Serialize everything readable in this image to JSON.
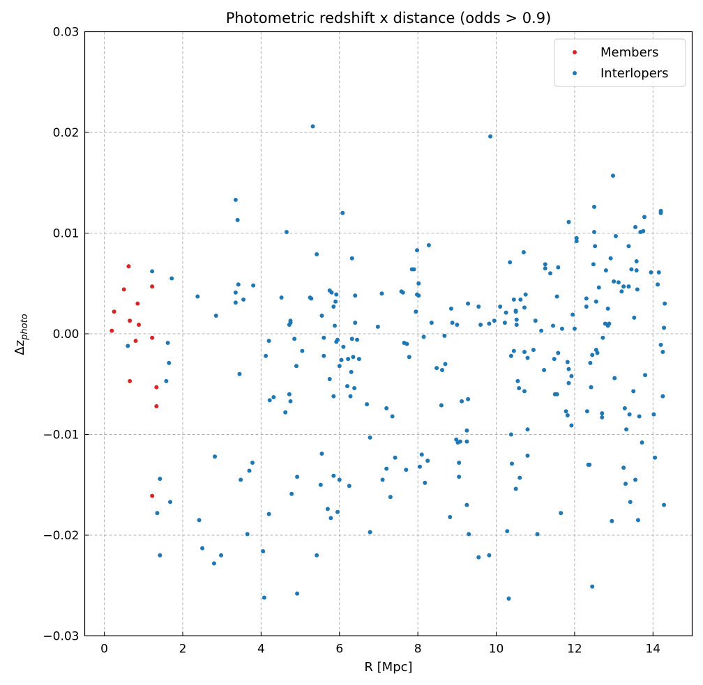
{
  "chart_data": {
    "type": "scatter",
    "title": "Photometric redshift x distance (odds > 0.9)",
    "xlabel": "R [Mpc]",
    "ylabel": "Δz",
    "ylabel_subscript": "photo",
    "xlim": [
      -0.5,
      15.0
    ],
    "ylim": [
      -0.03,
      0.03
    ],
    "xticks": [
      0,
      2,
      4,
      6,
      8,
      10,
      12,
      14
    ],
    "yticks": [
      -0.03,
      -0.02,
      -0.01,
      0.0,
      0.01,
      0.02,
      0.03
    ],
    "xtick_labels": [
      "0",
      "2",
      "4",
      "6",
      "8",
      "10",
      "12",
      "14"
    ],
    "ytick_labels": [
      "−0.03",
      "−0.02",
      "−0.01",
      "0.00",
      "0.01",
      "0.02",
      "0.03"
    ],
    "grid": true,
    "legend_position": "top-right",
    "series": [
      {
        "name": "Members",
        "color": "#d62728",
        "points": [
          [
            0.19,
            0.0003
          ],
          [
            0.25,
            0.0022
          ],
          [
            0.5,
            0.0044
          ],
          [
            0.62,
            0.0067
          ],
          [
            0.65,
            0.0013
          ],
          [
            0.65,
            -0.0047
          ],
          [
            0.8,
            -0.0007
          ],
          [
            0.85,
            0.003
          ],
          [
            0.88,
            0.0009
          ],
          [
            1.22,
            0.0047
          ],
          [
            1.22,
            -0.0004
          ],
          [
            1.22,
            -0.0161
          ],
          [
            1.33,
            -0.0053
          ],
          [
            1.33,
            -0.0072
          ]
        ]
      },
      {
        "name": "Interlopers",
        "color": "#1f77b4",
        "points": [
          [
            0.6,
            -0.0012
          ],
          [
            1.22,
            0.0062
          ],
          [
            1.35,
            -0.0178
          ],
          [
            1.42,
            -0.0144
          ],
          [
            1.42,
            -0.022
          ],
          [
            1.58,
            -0.0047
          ],
          [
            1.62,
            -0.0009
          ],
          [
            1.65,
            -0.0029
          ],
          [
            1.68,
            -0.0167
          ],
          [
            1.72,
            0.0055
          ],
          [
            2.38,
            0.0037
          ],
          [
            2.42,
            -0.0185
          ],
          [
            2.5,
            -0.0213
          ],
          [
            2.8,
            -0.0228
          ],
          [
            2.82,
            -0.0122
          ],
          [
            2.85,
            0.0018
          ],
          [
            2.98,
            -0.022
          ],
          [
            3.35,
            0.0133
          ],
          [
            3.35,
            0.0041
          ],
          [
            3.35,
            0.0031
          ],
          [
            3.4,
            0.0113
          ],
          [
            3.42,
            0.0049
          ],
          [
            3.45,
            -0.004
          ],
          [
            3.48,
            -0.0145
          ],
          [
            3.55,
            0.0034
          ],
          [
            3.65,
            -0.0199
          ],
          [
            3.7,
            -0.0136
          ],
          [
            3.78,
            -0.0128
          ],
          [
            3.8,
            0.0048
          ],
          [
            4.05,
            -0.0216
          ],
          [
            4.08,
            -0.0262
          ],
          [
            4.12,
            -0.0022
          ],
          [
            4.2,
            -0.0007
          ],
          [
            4.2,
            -0.0179
          ],
          [
            4.22,
            -0.0066
          ],
          [
            4.32,
            -0.0063
          ],
          [
            4.52,
            0.0036
          ],
          [
            4.62,
            -0.0078
          ],
          [
            4.65,
            0.0101
          ],
          [
            4.72,
            0.0009
          ],
          [
            4.75,
            0.0011
          ],
          [
            4.75,
            0.0013
          ],
          [
            4.72,
            -0.006
          ],
          [
            4.75,
            -0.0067
          ],
          [
            4.78,
            -0.0159
          ],
          [
            4.85,
            -0.0005
          ],
          [
            4.9,
            -0.0032
          ],
          [
            4.92,
            -0.0142
          ],
          [
            4.92,
            -0.0258
          ],
          [
            5.05,
            -0.0017
          ],
          [
            5.25,
            0.0036
          ],
          [
            5.28,
            0.0035
          ],
          [
            5.32,
            0.0206
          ],
          [
            5.42,
            0.0079
          ],
          [
            5.42,
            -0.022
          ],
          [
            5.55,
            0.0018
          ],
          [
            5.55,
            -0.0119
          ],
          [
            5.52,
            -0.015
          ],
          [
            5.6,
            -0.0004
          ],
          [
            5.6,
            -0.0022
          ],
          [
            5.7,
            -0.0174
          ],
          [
            5.75,
            -0.0045
          ],
          [
            5.75,
            0.0043
          ],
          [
            5.78,
            -0.0183
          ],
          [
            5.8,
            0.0041
          ],
          [
            5.85,
            0.0027
          ],
          [
            5.85,
            -0.0062
          ],
          [
            5.85,
            -0.0141
          ],
          [
            5.88,
            0.0008
          ],
          [
            5.9,
            0.0032
          ],
          [
            5.92,
            0.0039
          ],
          [
            5.92,
            -0.0008
          ],
          [
            5.95,
            -0.0006
          ],
          [
            5.95,
            -0.0177
          ],
          [
            6.0,
            -0.0032
          ],
          [
            6.0,
            -0.0145
          ],
          [
            6.05,
            -0.0026
          ],
          [
            6.08,
            0.012
          ],
          [
            6.1,
            -0.0013
          ],
          [
            6.2,
            -0.0052
          ],
          [
            6.22,
            -0.0025
          ],
          [
            6.25,
            -0.0151
          ],
          [
            6.28,
            -0.0062
          ],
          [
            6.3,
            -0.0038
          ],
          [
            6.32,
            0.0075
          ],
          [
            6.32,
            -0.0005
          ],
          [
            6.35,
            -0.0023
          ],
          [
            6.38,
            -0.0054
          ],
          [
            6.4,
            0.0011
          ],
          [
            6.4,
            0.0038
          ],
          [
            6.45,
            -0.0006
          ],
          [
            6.5,
            -0.0025
          ],
          [
            6.7,
            -0.007
          ],
          [
            6.78,
            -0.0103
          ],
          [
            6.78,
            -0.0197
          ],
          [
            6.98,
            0.0007
          ],
          [
            7.08,
            0.004
          ],
          [
            7.1,
            -0.0145
          ],
          [
            7.2,
            -0.0074
          ],
          [
            7.2,
            -0.0134
          ],
          [
            7.3,
            -0.0162
          ],
          [
            7.35,
            -0.0082
          ],
          [
            7.42,
            -0.0123
          ],
          [
            7.58,
            0.0042
          ],
          [
            7.62,
            0.0041
          ],
          [
            7.65,
            -0.0009
          ],
          [
            7.7,
            -0.0135
          ],
          [
            7.72,
            -0.001
          ],
          [
            7.78,
            -0.0023
          ],
          [
            7.85,
            0.0064
          ],
          [
            7.9,
            0.0064
          ],
          [
            7.95,
            0.0022
          ],
          [
            7.98,
            0.0083
          ],
          [
            7.98,
            0.0039
          ],
          [
            8.02,
            0.0038
          ],
          [
            8.02,
            0.005
          ],
          [
            8.05,
            -0.0132
          ],
          [
            8.1,
            -0.012
          ],
          [
            8.15,
            -0.0003
          ],
          [
            8.18,
            -0.0148
          ],
          [
            8.25,
            -0.0126
          ],
          [
            8.28,
            0.0088
          ],
          [
            8.35,
            0.0011
          ],
          [
            8.48,
            -0.0034
          ],
          [
            8.6,
            -0.0071
          ],
          [
            8.62,
            -0.0036
          ],
          [
            8.68,
            -0.0002
          ],
          [
            8.7,
            -0.003
          ],
          [
            8.82,
            -0.0182
          ],
          [
            8.85,
            0.0025
          ],
          [
            8.88,
            0.0011
          ],
          [
            8.98,
            -0.0105
          ],
          [
            9.0,
            0.0009
          ],
          [
            9.02,
            -0.0108
          ],
          [
            9.05,
            -0.0128
          ],
          [
            9.05,
            -0.0142
          ],
          [
            9.08,
            -0.0107
          ],
          [
            9.12,
            -0.0067
          ],
          [
            9.25,
            -0.0096
          ],
          [
            9.25,
            -0.0107
          ],
          [
            9.25,
            -0.017
          ],
          [
            9.28,
            0.003
          ],
          [
            9.28,
            -0.0065
          ],
          [
            9.3,
            -0.0199
          ],
          [
            9.55,
            0.0027
          ],
          [
            9.55,
            -0.0222
          ],
          [
            9.6,
            0.0009
          ],
          [
            9.82,
            0.001
          ],
          [
            9.82,
            -0.022
          ],
          [
            9.85,
            0.0196
          ],
          [
            9.95,
            0.0013
          ],
          [
            10.1,
            0.0027
          ],
          [
            10.22,
            0.0011
          ],
          [
            10.25,
            0.0021
          ],
          [
            10.28,
            -0.0196
          ],
          [
            10.35,
            0.0071
          ],
          [
            10.32,
            -0.0263
          ],
          [
            10.38,
            -0.0022
          ],
          [
            10.38,
            -0.01
          ],
          [
            10.4,
            -0.0129
          ],
          [
            10.45,
            -0.0017
          ],
          [
            10.45,
            0.0034
          ],
          [
            10.5,
            0.0023
          ],
          [
            10.5,
            0.0022
          ],
          [
            10.52,
            0.0014
          ],
          [
            10.52,
            0.0009
          ],
          [
            10.5,
            -0.0154
          ],
          [
            10.55,
            -0.0047
          ],
          [
            10.58,
            -0.0054
          ],
          [
            10.6,
            -0.0143
          ],
          [
            10.62,
            0.0034
          ],
          [
            10.7,
            0.0081
          ],
          [
            10.72,
            0.0026
          ],
          [
            10.72,
            -0.0018
          ],
          [
            10.72,
            -0.0057
          ],
          [
            10.75,
            0.0039
          ],
          [
            10.8,
            -0.0024
          ],
          [
            10.8,
            -0.0095
          ],
          [
            10.8,
            -0.0121
          ],
          [
            10.95,
            -0.0016
          ],
          [
            11.0,
            0.0013
          ],
          [
            11.05,
            -0.0199
          ],
          [
            11.15,
            0.0003
          ],
          [
            11.22,
            -0.0036
          ],
          [
            11.25,
            0.0069
          ],
          [
            11.25,
            0.0065
          ],
          [
            11.38,
            0.006
          ],
          [
            11.45,
            0.0008
          ],
          [
            11.48,
            -0.0025
          ],
          [
            11.5,
            -0.006
          ],
          [
            11.55,
            -0.006
          ],
          [
            11.55,
            0.0037
          ],
          [
            11.58,
            0.0066
          ],
          [
            11.58,
            -0.0019
          ],
          [
            11.65,
            -0.0178
          ],
          [
            11.68,
            0.0005
          ],
          [
            11.78,
            -0.0077
          ],
          [
            11.82,
            -0.0081
          ],
          [
            11.82,
            -0.0028
          ],
          [
            11.85,
            0.0111
          ],
          [
            11.85,
            -0.0035
          ],
          [
            11.85,
            -0.0049
          ],
          [
            11.92,
            -0.0042
          ],
          [
            11.92,
            -0.0091
          ],
          [
            11.95,
            0.0019
          ],
          [
            12.0,
            0.0005
          ],
          [
            12.05,
            0.0095
          ],
          [
            12.05,
            0.0092
          ],
          [
            12.3,
            0.0027
          ],
          [
            12.3,
            0.0035
          ],
          [
            12.32,
            -0.0077
          ],
          [
            12.35,
            -0.013
          ],
          [
            12.38,
            -0.013
          ],
          [
            12.4,
            -0.0029
          ],
          [
            12.42,
            -0.0053
          ],
          [
            12.45,
            -0.0021
          ],
          [
            12.45,
            -0.0251
          ],
          [
            12.48,
            0.0069
          ],
          [
            12.5,
            0.0126
          ],
          [
            12.5,
            0.0101
          ],
          [
            12.52,
            0.0087
          ],
          [
            12.55,
            0.0032
          ],
          [
            12.55,
            -0.0016
          ],
          [
            12.58,
            -0.0019
          ],
          [
            12.62,
            0.0046
          ],
          [
            12.7,
            -0.0079
          ],
          [
            12.7,
            -0.0083
          ],
          [
            12.72,
            -0.0004
          ],
          [
            12.78,
            0.001
          ],
          [
            12.8,
            0.0063
          ],
          [
            12.85,
            0.0008
          ],
          [
            12.85,
            0.0025
          ],
          [
            12.88,
            0.001
          ],
          [
            12.92,
            0.0075
          ],
          [
            12.95,
            -0.0186
          ],
          [
            12.98,
            0.0157
          ],
          [
            13.0,
            0.0052
          ],
          [
            13.02,
            -0.0044
          ],
          [
            13.05,
            0.0097
          ],
          [
            13.12,
            0.0051
          ],
          [
            13.2,
            0.0042
          ],
          [
            13.25,
            0.0047
          ],
          [
            13.25,
            -0.0133
          ],
          [
            13.28,
            -0.0074
          ],
          [
            13.3,
            -0.0149
          ],
          [
            13.32,
            -0.0095
          ],
          [
            13.38,
            0.0047
          ],
          [
            13.38,
            0.0087
          ],
          [
            13.4,
            -0.008
          ],
          [
            13.42,
            -0.0167
          ],
          [
            13.45,
            0.0064
          ],
          [
            13.5,
            -0.0057
          ],
          [
            13.52,
            0.0016
          ],
          [
            13.55,
            0.0106
          ],
          [
            13.55,
            -0.0145
          ],
          [
            13.58,
            0.0072
          ],
          [
            13.58,
            0.0063
          ],
          [
            13.6,
            0.0044
          ],
          [
            13.62,
            -0.0185
          ],
          [
            13.65,
            -0.0082
          ],
          [
            13.68,
            0.0101
          ],
          [
            13.72,
            -0.0108
          ],
          [
            13.75,
            0.0102
          ],
          [
            13.78,
            0.0116
          ],
          [
            13.8,
            -0.0041
          ],
          [
            13.95,
            0.0061
          ],
          [
            14.02,
            -0.008
          ],
          [
            14.05,
            -0.0123
          ],
          [
            14.12,
            0.0049
          ],
          [
            14.15,
            0.0061
          ],
          [
            14.2,
            0.012
          ],
          [
            14.2,
            0.0122
          ],
          [
            14.2,
            -0.0011
          ],
          [
            14.25,
            -0.0018
          ],
          [
            14.25,
            -0.0062
          ],
          [
            14.28,
            0.0006
          ],
          [
            14.3,
            0.003
          ],
          [
            14.28,
            -0.017
          ]
        ]
      }
    ]
  }
}
